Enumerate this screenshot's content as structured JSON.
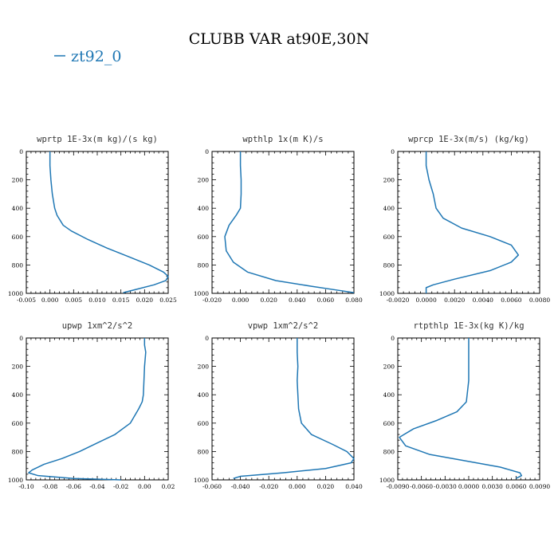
{
  "figure": {
    "title": "CLUBB VAR at90E,30N",
    "legend": {
      "label": "zt92_0",
      "color": "#1f77b4"
    }
  },
  "chart_data": [
    {
      "type": "line",
      "title": "wprtp  1E-3x(m kg)/(s kg)",
      "xlim": [
        -0.005,
        0.025
      ],
      "ylim": [
        1000,
        0
      ],
      "xticks": [
        -0.005,
        0.0,
        0.005,
        0.01,
        0.015,
        0.02,
        0.025
      ],
      "xtick_labels": [
        "-0.005",
        "0.000",
        "0.005",
        "0.010",
        "0.015",
        "0.020",
        "0.025"
      ],
      "yticks": [
        0,
        200,
        400,
        600,
        800,
        1000
      ],
      "ytick_labels": [
        "0",
        "200",
        "400",
        "600",
        "800",
        "1000"
      ],
      "series": [
        {
          "name": "zt92_0",
          "color": "#1f77b4",
          "x": [
            0.0,
            0.0,
            0.0002,
            0.0005,
            0.001,
            0.0015,
            0.0028,
            0.0045,
            0.008,
            0.012,
            0.0165,
            0.021,
            0.024,
            0.025,
            0.0245,
            0.022,
            0.0185,
            0.0155
          ],
          "y": [
            0,
            100,
            200,
            300,
            400,
            450,
            520,
            560,
            620,
            680,
            740,
            800,
            850,
            880,
            910,
            940,
            970,
            995
          ]
        }
      ]
    },
    {
      "type": "line",
      "title": "wpthlp  1x(m K)/s",
      "xlim": [
        -0.02,
        0.08
      ],
      "ylim": [
        1000,
        0
      ],
      "xticks": [
        -0.02,
        0.0,
        0.02,
        0.04,
        0.06,
        0.08
      ],
      "xtick_labels": [
        "-0.020",
        "0.000",
        "0.020",
        "0.040",
        "0.060",
        "0.080"
      ],
      "yticks": [
        0,
        200,
        400,
        600,
        800,
        1000
      ],
      "ytick_labels": [
        "0",
        "200",
        "400",
        "600",
        "800",
        "1000"
      ],
      "series": [
        {
          "name": "zt92_0",
          "color": "#1f77b4",
          "x": [
            0.0,
            0.0,
            0.0005,
            0.0005,
            0.0,
            -0.003,
            -0.008,
            -0.011,
            -0.01,
            -0.005,
            0.005,
            0.025,
            0.05,
            0.07,
            0.08
          ],
          "y": [
            0,
            100,
            200,
            300,
            400,
            450,
            520,
            600,
            700,
            780,
            850,
            910,
            950,
            980,
            995
          ]
        }
      ]
    },
    {
      "type": "line",
      "title": "wprcp  1E-3x(m/s) (kg/kg)",
      "xlim": [
        -0.002,
        0.008
      ],
      "ylim": [
        1000,
        0
      ],
      "xticks": [
        -0.002,
        0.0,
        0.002,
        0.004,
        0.006,
        0.008
      ],
      "xtick_labels": [
        "-0.0020",
        "0.0000",
        "0.0020",
        "0.0040",
        "0.0060",
        "0.0080"
      ],
      "yticks": [
        0,
        200,
        400,
        600,
        800,
        1000
      ],
      "ytick_labels": [
        "0",
        "200",
        "400",
        "600",
        "800",
        "1000"
      ],
      "series": [
        {
          "name": "zt92_0",
          "color": "#1f77b4",
          "x": [
            0.0,
            0.0,
            0.0002,
            0.0005,
            0.0007,
            0.0012,
            0.0025,
            0.0045,
            0.006,
            0.0065,
            0.006,
            0.0045,
            0.002,
            0.0005,
            0.0,
            0.0
          ],
          "y": [
            0,
            100,
            200,
            300,
            400,
            470,
            540,
            600,
            660,
            730,
            780,
            840,
            900,
            940,
            960,
            1000
          ]
        }
      ]
    },
    {
      "type": "line",
      "title": "upwp  1xm^2/s^2",
      "xlim": [
        -0.1,
        0.02
      ],
      "ylim": [
        1000,
        0
      ],
      "xticks": [
        -0.1,
        -0.08,
        -0.06,
        -0.04,
        -0.02,
        0.0,
        0.02
      ],
      "xtick_labels": [
        "-0.10",
        "-0.08",
        "-0.06",
        "-0.04",
        "-0.02",
        "0.00",
        "0.02"
      ],
      "yticks": [
        0,
        200,
        400,
        600,
        800,
        1000
      ],
      "ytick_labels": [
        "0",
        "200",
        "400",
        "600",
        "800",
        "1000"
      ],
      "series": [
        {
          "name": "zt92_0",
          "color": "#1f77b4",
          "x": [
            0.0,
            0.0,
            0.001,
            0.0,
            -0.0005,
            -0.001,
            -0.002,
            -0.005,
            -0.012,
            -0.025,
            -0.04,
            -0.055,
            -0.07,
            -0.085,
            -0.095,
            -0.098,
            -0.09,
            -0.06,
            -0.02
          ],
          "y": [
            0,
            50,
            100,
            200,
            300,
            400,
            450,
            500,
            600,
            680,
            740,
            800,
            850,
            890,
            930,
            950,
            970,
            990,
            1000
          ]
        }
      ]
    },
    {
      "type": "line",
      "title": "vpwp  1xm^2/s^2",
      "xlim": [
        -0.06,
        0.04
      ],
      "ylim": [
        1000,
        0
      ],
      "xticks": [
        -0.06,
        -0.04,
        -0.02,
        0.0,
        0.02,
        0.04
      ],
      "xtick_labels": [
        "-0.060",
        "-0.040",
        "-0.020",
        "0.000",
        "0.020",
        "0.040"
      ],
      "yticks": [
        0,
        200,
        400,
        600,
        800,
        1000
      ],
      "ytick_labels": [
        "0",
        "200",
        "400",
        "600",
        "800",
        "1000"
      ],
      "series": [
        {
          "name": "zt92_0",
          "color": "#1f77b4",
          "x": [
            0.0,
            0.0,
            0.0005,
            0.0,
            0.0005,
            0.001,
            0.003,
            0.01,
            0.025,
            0.035,
            0.04,
            0.038,
            0.02,
            -0.01,
            -0.04,
            -0.045
          ],
          "y": [
            0,
            100,
            200,
            300,
            400,
            500,
            600,
            680,
            750,
            800,
            850,
            880,
            920,
            950,
            975,
            990
          ]
        }
      ]
    },
    {
      "type": "line",
      "title": "rtpthlp  1E-3x(kg K)/kg",
      "xlim": [
        -0.009,
        0.009
      ],
      "ylim": [
        1000,
        0
      ],
      "xticks": [
        -0.009,
        -0.006,
        -0.003,
        0.0,
        0.003,
        0.006,
        0.009
      ],
      "xtick_labels": [
        "-0.0090",
        "-0.0060",
        "-0.0030",
        "0.0000",
        "0.0030",
        "0.0060",
        "0.0090"
      ],
      "yticks": [
        0,
        200,
        400,
        600,
        800,
        1000
      ],
      "ytick_labels": [
        "0",
        "200",
        "400",
        "600",
        "800",
        "1000"
      ],
      "series": [
        {
          "name": "zt92_0",
          "color": "#1f77b4",
          "x": [
            0.0,
            0.0,
            0.0,
            -0.0003,
            -0.0015,
            -0.004,
            -0.007,
            -0.0088,
            -0.008,
            -0.005,
            0.0,
            0.004,
            0.0065,
            0.0067,
            0.006
          ],
          "y": [
            0,
            100,
            300,
            450,
            520,
            580,
            640,
            700,
            760,
            820,
            870,
            910,
            950,
            970,
            990
          ]
        }
      ]
    }
  ]
}
